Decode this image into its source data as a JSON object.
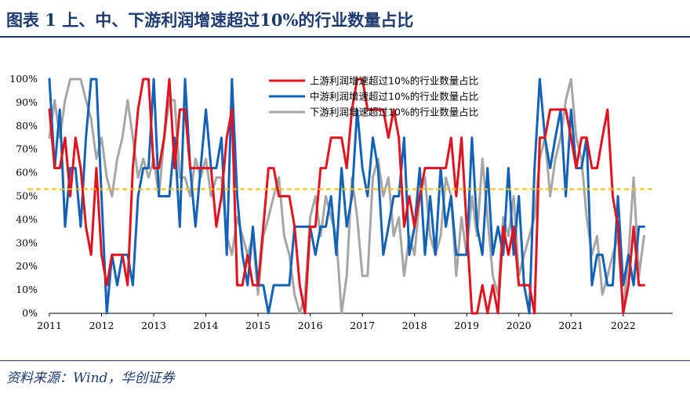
{
  "title": "图表 1   上、中、下游利润增速超过10%的行业数量占比",
  "source": "资料来源：Wind，华创证券",
  "colors": {
    "upstream": "#e0131e",
    "midstream": "#1462b8",
    "downstream": "#a6a6a6",
    "reference": "#f5c000",
    "title": "#1f3a6e"
  },
  "chart_data": {
    "type": "line",
    "xlabel": "",
    "ylabel": "",
    "ylim": [
      0,
      100
    ],
    "xlim": [
      2011.0,
      2022.95
    ],
    "y_ticks": [
      "0%",
      "10%",
      "20%",
      "30%",
      "40%",
      "50%",
      "60%",
      "70%",
      "80%",
      "90%",
      "100%"
    ],
    "x_ticks": [
      "2011",
      "2012",
      "2013",
      "2014",
      "2015",
      "2016",
      "2017",
      "2018",
      "2019",
      "2020",
      "2021",
      "2022"
    ],
    "reference_line": {
      "y": 53,
      "style": "dashed"
    },
    "legend_position": "top-right",
    "series": [
      {
        "name": "上游利润增速超过10%的行业数量占比",
        "color": "#e0131e",
        "x": [
          2011.0,
          2011.1,
          2011.2,
          2011.3,
          2011.4,
          2011.5,
          2011.6,
          2011.7,
          2011.8,
          2011.9,
          2012.0,
          2012.1,
          2012.2,
          2012.3,
          2012.4,
          2012.5,
          2012.6,
          2012.7,
          2012.8,
          2012.9,
          2013.0,
          2013.1,
          2013.2,
          2013.3,
          2013.4,
          2013.5,
          2013.6,
          2013.7,
          2013.8,
          2013.9,
          2014.0,
          2014.1,
          2014.2,
          2014.3,
          2014.4,
          2014.5,
          2014.6,
          2014.7,
          2014.8,
          2014.9,
          2015.0,
          2015.1,
          2015.2,
          2015.3,
          2015.4,
          2015.5,
          2015.6,
          2015.7,
          2015.8,
          2015.9,
          2016.0,
          2016.1,
          2016.2,
          2016.3,
          2016.4,
          2016.5,
          2016.6,
          2016.7,
          2016.8,
          2016.9,
          2017.0,
          2017.1,
          2017.2,
          2017.3,
          2017.4,
          2017.5,
          2017.6,
          2017.7,
          2017.8,
          2017.9,
          2018.0,
          2018.1,
          2018.2,
          2018.3,
          2018.4,
          2018.5,
          2018.6,
          2018.7,
          2018.8,
          2018.9,
          2019.0,
          2019.1,
          2019.2,
          2019.3,
          2019.4,
          2019.5,
          2019.6,
          2019.7,
          2019.8,
          2019.9,
          2020.0,
          2020.1,
          2020.2,
          2020.3,
          2020.4,
          2020.5,
          2020.6,
          2020.7,
          2020.8,
          2020.9,
          2021.0,
          2021.1,
          2021.2,
          2021.3,
          2021.4,
          2021.5,
          2021.6,
          2021.7,
          2021.8,
          2021.9,
          2022.0,
          2022.1,
          2022.2,
          2022.3,
          2022.4
        ],
        "values": [
          87,
          62,
          62,
          75,
          50,
          75,
          62,
          37,
          25,
          62,
          25,
          12,
          25,
          25,
          25,
          12,
          62,
          87,
          100,
          100,
          62,
          62,
          75,
          100,
          62,
          87,
          87,
          62,
          62,
          62,
          62,
          62,
          37,
          50,
          75,
          87,
          12,
          12,
          25,
          12,
          12,
          37,
          62,
          62,
          50,
          50,
          50,
          37,
          12,
          0,
          37,
          37,
          62,
          62,
          75,
          75,
          75,
          62,
          87,
          100,
          100,
          87,
          87,
          87,
          87,
          75,
          87,
          75,
          37,
          50,
          37,
          50,
          62,
          62,
          62,
          62,
          62,
          75,
          50,
          75,
          37,
          0,
          0,
          12,
          0,
          12,
          0,
          37,
          25,
          37,
          12,
          12,
          12,
          0,
          75,
          75,
          87,
          87,
          87,
          87,
          75,
          62,
          75,
          75,
          62,
          62,
          75,
          87,
          50,
          37,
          0,
          12,
          37,
          12,
          12
        ]
      },
      {
        "name": "中游利润增速超过10%的行业数量占比",
        "color": "#1462b8",
        "x": [
          2011.0,
          2011.1,
          2011.2,
          2011.3,
          2011.4,
          2011.5,
          2011.6,
          2011.7,
          2011.8,
          2011.9,
          2012.0,
          2012.1,
          2012.2,
          2012.3,
          2012.4,
          2012.5,
          2012.6,
          2012.7,
          2012.8,
          2012.9,
          2013.0,
          2013.1,
          2013.2,
          2013.3,
          2013.4,
          2013.5,
          2013.6,
          2013.7,
          2013.8,
          2013.9,
          2014.0,
          2014.1,
          2014.2,
          2014.3,
          2014.4,
          2014.5,
          2014.6,
          2014.7,
          2014.8,
          2014.9,
          2015.0,
          2015.1,
          2015.2,
          2015.3,
          2015.4,
          2015.5,
          2015.6,
          2015.7,
          2015.8,
          2015.9,
          2016.0,
          2016.1,
          2016.2,
          2016.3,
          2016.4,
          2016.5,
          2016.6,
          2016.7,
          2016.8,
          2016.9,
          2017.0,
          2017.1,
          2017.2,
          2017.3,
          2017.4,
          2017.5,
          2017.6,
          2017.7,
          2017.8,
          2017.9,
          2018.0,
          2018.1,
          2018.2,
          2018.3,
          2018.4,
          2018.5,
          2018.6,
          2018.7,
          2018.8,
          2018.9,
          2019.0,
          2019.1,
          2019.2,
          2019.3,
          2019.4,
          2019.5,
          2019.6,
          2019.7,
          2019.8,
          2019.9,
          2020.0,
          2020.1,
          2020.2,
          2020.3,
          2020.4,
          2020.5,
          2020.6,
          2020.7,
          2020.8,
          2020.9,
          2021.0,
          2021.1,
          2021.2,
          2021.3,
          2021.4,
          2021.5,
          2021.6,
          2021.7,
          2021.8,
          2021.9,
          2022.0,
          2022.1,
          2022.2,
          2022.3,
          2022.4
        ],
        "values": [
          100,
          62,
          87,
          37,
          62,
          62,
          37,
          75,
          100,
          100,
          50,
          0,
          25,
          12,
          25,
          25,
          12,
          50,
          62,
          62,
          100,
          50,
          50,
          50,
          75,
          37,
          100,
          62,
          37,
          62,
          87,
          62,
          62,
          75,
          25,
          100,
          50,
          25,
          12,
          37,
          12,
          12,
          0,
          12,
          12,
          12,
          12,
          37,
          37,
          37,
          37,
          25,
          37,
          37,
          50,
          25,
          62,
          37,
          50,
          87,
          62,
          50,
          75,
          62,
          25,
          37,
          50,
          50,
          75,
          25,
          37,
          62,
          25,
          50,
          25,
          62,
          37,
          50,
          25,
          25,
          25,
          75,
          37,
          25,
          62,
          25,
          37,
          25,
          62,
          25,
          50,
          12,
          0,
          62,
          100,
          75,
          62,
          75,
          87,
          50,
          87,
          62,
          62,
          75,
          12,
          25,
          25,
          12,
          12,
          50,
          12,
          25,
          12,
          37,
          37
        ]
      },
      {
        "name": "下游利润增速超过10%的行业数量占比",
        "color": "#a6a6a6",
        "x": [
          2011.0,
          2011.1,
          2011.2,
          2011.3,
          2011.4,
          2011.5,
          2011.6,
          2011.7,
          2011.8,
          2011.9,
          2012.0,
          2012.1,
          2012.2,
          2012.3,
          2012.4,
          2012.5,
          2012.6,
          2012.7,
          2012.8,
          2012.9,
          2013.0,
          2013.1,
          2013.2,
          2013.3,
          2013.4,
          2013.5,
          2013.6,
          2013.7,
          2013.8,
          2013.9,
          2014.0,
          2014.1,
          2014.2,
          2014.3,
          2014.4,
          2014.5,
          2014.6,
          2014.7,
          2014.8,
          2014.9,
          2015.0,
          2015.1,
          2015.2,
          2015.3,
          2015.4,
          2015.5,
          2015.6,
          2015.7,
          2015.8,
          2015.9,
          2016.0,
          2016.1,
          2016.2,
          2016.3,
          2016.4,
          2016.5,
          2016.6,
          2016.7,
          2016.8,
          2016.9,
          2017.0,
          2017.1,
          2017.2,
          2017.3,
          2017.4,
          2017.5,
          2017.6,
          2017.7,
          2017.8,
          2017.9,
          2018.0,
          2018.1,
          2018.2,
          2018.3,
          2018.4,
          2018.5,
          2018.6,
          2018.7,
          2018.8,
          2018.9,
          2019.0,
          2019.1,
          2019.2,
          2019.3,
          2019.4,
          2019.5,
          2019.6,
          2019.7,
          2019.8,
          2019.9,
          2020.0,
          2020.1,
          2020.2,
          2020.3,
          2020.4,
          2020.5,
          2020.6,
          2020.7,
          2020.8,
          2020.9,
          2021.0,
          2021.1,
          2021.2,
          2021.3,
          2021.4,
          2021.5,
          2021.6,
          2021.7,
          2021.8,
          2021.9,
          2022.0,
          2022.1,
          2022.2,
          2022.3,
          2022.4
        ],
        "values": [
          75,
          91,
          75,
          91,
          100,
          100,
          100,
          91,
          83,
          66,
          75,
          58,
          50,
          66,
          75,
          91,
          75,
          58,
          66,
          58,
          66,
          50,
          75,
          91,
          91,
          58,
          58,
          50,
          66,
          58,
          66,
          50,
          58,
          58,
          33,
          25,
          41,
          33,
          25,
          33,
          8,
          33,
          41,
          50,
          58,
          33,
          25,
          8,
          0,
          8,
          41,
          50,
          33,
          50,
          41,
          33,
          0,
          16,
          58,
          41,
          16,
          16,
          58,
          66,
          50,
          58,
          33,
          41,
          16,
          33,
          25,
          50,
          58,
          33,
          25,
          33,
          58,
          50,
          16,
          41,
          25,
          50,
          33,
          66,
          41,
          16,
          8,
          41,
          33,
          50,
          16,
          25,
          33,
          41,
          66,
          75,
          50,
          66,
          75,
          91,
          100,
          75,
          66,
          41,
          25,
          33,
          8,
          16,
          25,
          33,
          0,
          25,
          58,
          16,
          33
        ]
      }
    ]
  }
}
